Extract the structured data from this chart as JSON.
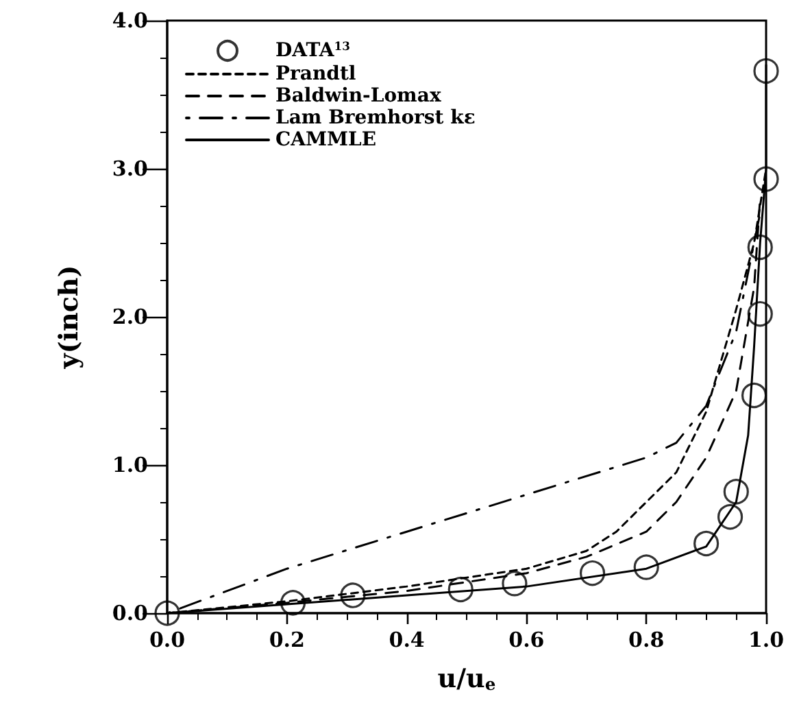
{
  "chart_data": {
    "type": "line",
    "xlabel": "u/u$_{e}$",
    "ylabel": "y(inch)",
    "xlim": [
      0,
      1
    ],
    "ylim": [
      0,
      4
    ],
    "xticks": [
      {
        "value": 0,
        "label": "0.0"
      },
      {
        "value": 0.2,
        "label": "0.2"
      },
      {
        "value": 0.4,
        "label": "0.4"
      },
      {
        "value": 0.6,
        "label": "0.6"
      },
      {
        "value": 0.8,
        "label": "0.8"
      },
      {
        "value": 1,
        "label": "1.0"
      }
    ],
    "yticks": [
      {
        "value": 0,
        "label": "0.0"
      },
      {
        "value": 1,
        "label": "1.0"
      },
      {
        "value": 2,
        "label": "2.0"
      },
      {
        "value": 3,
        "label": "3.0"
      },
      {
        "value": 4,
        "label": "4.0"
      }
    ],
    "grid": false,
    "legend": "top left",
    "series": [
      {
        "name": "DATA$^{13}$",
        "type": "scatter",
        "marker": "circle",
        "color": "#000000",
        "x": [
          0,
          0.21,
          0.31,
          0.49,
          0.58,
          0.71,
          0.8,
          0.9,
          0.94,
          0.95,
          0.98,
          0.99,
          0.99,
          1.0,
          1.0
        ],
        "values": [
          0,
          0.07,
          0.12,
          0.16,
          0.2,
          0.27,
          0.31,
          0.47,
          0.65,
          0.82,
          1.47,
          2.02,
          2.47,
          2.93,
          3.66
        ]
      },
      {
        "name": "Prandtl",
        "line_style": "dotted",
        "color": "#000000",
        "x": [
          0,
          0.2,
          0.4,
          0.6,
          0.7,
          0.75,
          0.8,
          0.85,
          0.9,
          0.95,
          0.98,
          1.0
        ],
        "values": [
          0,
          0.08,
          0.18,
          0.3,
          0.42,
          0.55,
          0.75,
          0.95,
          1.36,
          2.05,
          2.5,
          3.0
        ]
      },
      {
        "name": "Baldwin-Lomax",
        "line_style": "dashed",
        "color": "#000000",
        "x": [
          0,
          0.2,
          0.4,
          0.6,
          0.7,
          0.8,
          0.85,
          0.9,
          0.95,
          0.98,
          0.99
        ],
        "values": [
          0,
          0.07,
          0.15,
          0.27,
          0.38,
          0.55,
          0.75,
          1.05,
          1.5,
          2.2,
          2.8
        ]
      },
      {
        "name": "Lam Bremhorst kε",
        "line_style": "dashdot",
        "color": "#000000",
        "x": [
          0,
          0.2,
          0.4,
          0.6,
          0.8,
          0.85,
          0.9,
          0.95,
          0.98,
          0.99
        ],
        "values": [
          0,
          0.3,
          0.55,
          0.8,
          1.05,
          1.15,
          1.4,
          1.9,
          2.5,
          2.7
        ]
      },
      {
        "name": "CAMMLE",
        "line_style": "solid",
        "color": "#000000",
        "x": [
          0,
          0.2,
          0.4,
          0.6,
          0.8,
          0.9,
          0.95,
          0.97,
          0.98,
          0.99,
          1.0,
          1.0
        ],
        "values": [
          0,
          0.06,
          0.12,
          0.18,
          0.3,
          0.45,
          0.75,
          1.2,
          1.8,
          2.5,
          3.0,
          3.7
        ]
      }
    ]
  }
}
